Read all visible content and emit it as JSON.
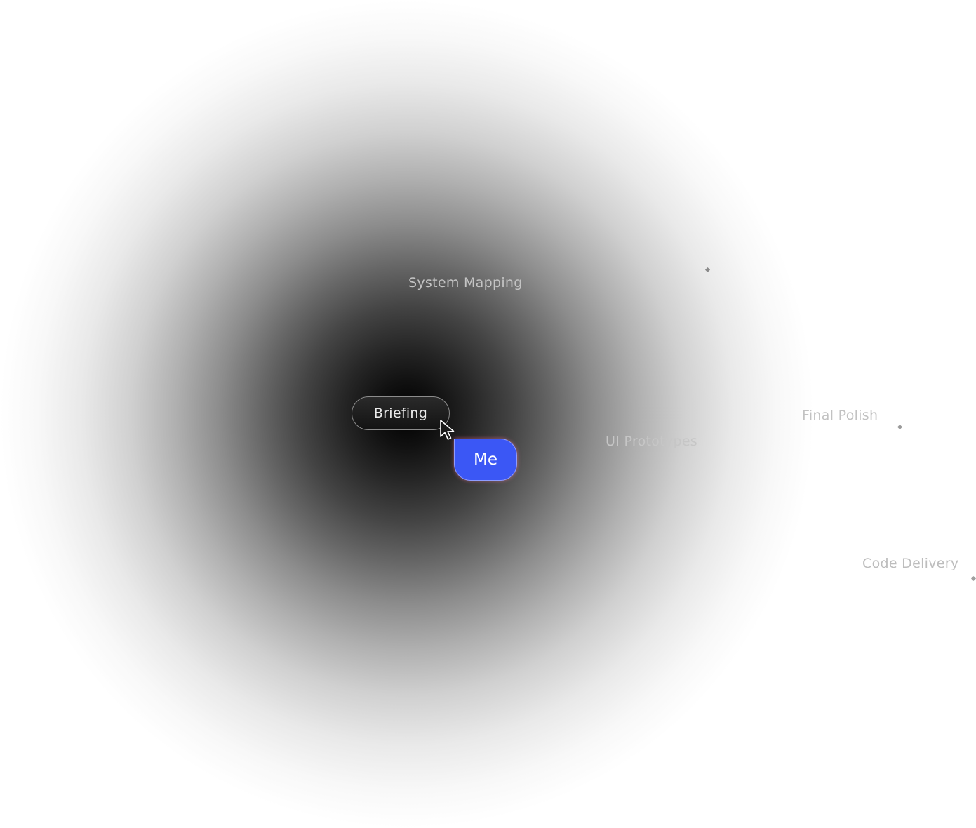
{
  "nodes": {
    "system_mapping": "System Mapping",
    "ui_prototypes": "UI Prototypes",
    "final_polish": "Final Polish",
    "code_delivery": "Code Delivery"
  },
  "current_step": {
    "label": "Briefing"
  },
  "user_tag": {
    "label": "Me",
    "color": "#3b57f5"
  },
  "cursor": {
    "icon": "pointer-arrow-icon"
  },
  "colors": {
    "glow_center": "#000000",
    "background": "#ffffff",
    "pill": "#1a1a1a"
  }
}
